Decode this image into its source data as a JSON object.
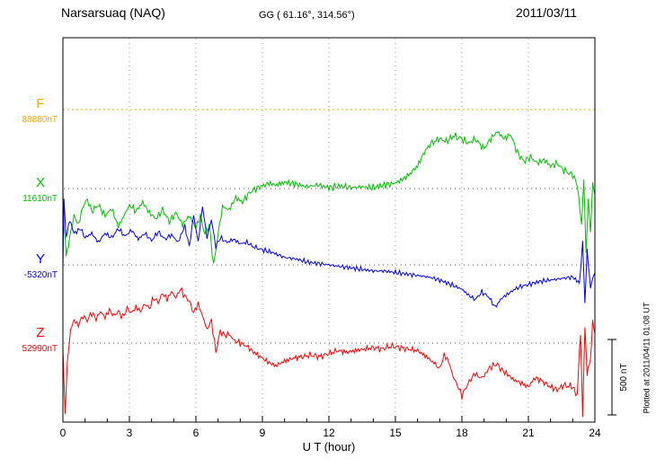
{
  "header": {
    "station": "Narsarsuaq (NAQ)",
    "coords": "GG ( 61.16°, 314.56°)",
    "date": "2011/03/11"
  },
  "axis": {
    "xlabel": "U T (hour)",
    "x_ticks": [
      0,
      3,
      6,
      9,
      12,
      15,
      18,
      21,
      24
    ]
  },
  "scale_bar": {
    "label": "500 nT",
    "nT": 500
  },
  "footer_note": "Plotted at 2011/04/11 01:08 UT",
  "chart_data": {
    "type": "line",
    "title": "Narsarsuaq (NAQ) magnetogram",
    "subtitle": "GG ( 61.16°, 314.56°)",
    "date": "2011/03/11",
    "xlabel": "U T (hour)",
    "ylabel": "",
    "units": "nT",
    "xlim": [
      0,
      24
    ],
    "x_ticks": [
      0,
      3,
      6,
      9,
      12,
      15,
      18,
      21,
      24
    ],
    "scale_nT": 500,
    "grid": "dotted vertical lines every 3 h; dotted horizontal line at each component baseline",
    "legend_position": "left margin (component letter above its baseline value)",
    "layout_hint": "four stacked traces, each plotted as offset in nT from its printed baseline value; right-hand bracket shows 500 nT scale",
    "series": [
      {
        "name": "F",
        "baseline_label": "88880nT",
        "baseline_nT": 88880,
        "color": "#ffa500",
        "style": "dotted",
        "noise_nT": 0,
        "points": [
          [
            0,
            0
          ],
          [
            24,
            0
          ]
        ]
      },
      {
        "name": "X",
        "baseline_label": "11610nT",
        "baseline_nT": 11610,
        "color": "#00c000",
        "style": "solid",
        "noise_nT": 26,
        "points": [
          [
            0,
            -12
          ],
          [
            0.05,
            -240
          ],
          [
            0.15,
            -450
          ],
          [
            0.3,
            -330
          ],
          [
            0.5,
            -180
          ],
          [
            0.7,
            -240
          ],
          [
            0.9,
            -120
          ],
          [
            1.1,
            -72
          ],
          [
            1.3,
            -150
          ],
          [
            1.6,
            -108
          ],
          [
            1.9,
            -180
          ],
          [
            2.2,
            -132
          ],
          [
            2.5,
            -252
          ],
          [
            2.8,
            -168
          ],
          [
            3,
            -108
          ],
          [
            3.3,
            -150
          ],
          [
            3.6,
            -90
          ],
          [
            3.9,
            -160
          ],
          [
            4.2,
            -200
          ],
          [
            4.5,
            -140
          ],
          [
            4.8,
            -220
          ],
          [
            5.1,
            -160
          ],
          [
            5.4,
            -240
          ],
          [
            5.7,
            -180
          ],
          [
            6,
            -260
          ],
          [
            6.2,
            -180
          ],
          [
            6.4,
            -300
          ],
          [
            6.6,
            -240
          ],
          [
            6.8,
            -510
          ],
          [
            7,
            -300
          ],
          [
            7.2,
            -120
          ],
          [
            7.5,
            -140
          ],
          [
            7.8,
            -60
          ],
          [
            8.1,
            -90
          ],
          [
            8.4,
            -30
          ],
          [
            8.7,
            0
          ],
          [
            9,
            18
          ],
          [
            9.3,
            36
          ],
          [
            9.6,
            24
          ],
          [
            10,
            42
          ],
          [
            10.5,
            30
          ],
          [
            11,
            12
          ],
          [
            11.5,
            24
          ],
          [
            12,
            6
          ],
          [
            12.5,
            18
          ],
          [
            13,
            6
          ],
          [
            13.5,
            12
          ],
          [
            14,
            6
          ],
          [
            14.5,
            24
          ],
          [
            15,
            36
          ],
          [
            15.3,
            60
          ],
          [
            15.6,
            90
          ],
          [
            16,
            150
          ],
          [
            16.3,
            240
          ],
          [
            16.6,
            300
          ],
          [
            17,
            330
          ],
          [
            17.3,
            312
          ],
          [
            17.6,
            348
          ],
          [
            18,
            330
          ],
          [
            18.3,
            300
          ],
          [
            18.6,
            330
          ],
          [
            19,
            264
          ],
          [
            19.3,
            330
          ],
          [
            19.6,
            378
          ],
          [
            19.9,
            330
          ],
          [
            20.2,
            360
          ],
          [
            20.5,
            240
          ],
          [
            20.8,
            180
          ],
          [
            21.1,
            210
          ],
          [
            21.4,
            168
          ],
          [
            21.7,
            192
          ],
          [
            22,
            150
          ],
          [
            22.3,
            168
          ],
          [
            22.6,
            120
          ],
          [
            23,
            90
          ],
          [
            23.2,
            30
          ],
          [
            23.4,
            -240
          ],
          [
            23.5,
            60
          ],
          [
            23.6,
            -420
          ],
          [
            23.7,
            -60
          ],
          [
            23.8,
            -300
          ],
          [
            23.9,
            30
          ],
          [
            24,
            -60
          ]
        ]
      },
      {
        "name": "Y",
        "baseline_label": "-5320nT",
        "baseline_nT": -5320,
        "color": "#0000ff",
        "style": "solid",
        "noise_nT": 18,
        "points": [
          [
            0,
            -30
          ],
          [
            0.05,
            420
          ],
          [
            0.15,
            180
          ],
          [
            0.3,
            300
          ],
          [
            0.5,
            210
          ],
          [
            0.8,
            240
          ],
          [
            1,
            180
          ],
          [
            1.3,
            210
          ],
          [
            1.6,
            150
          ],
          [
            1.9,
            210
          ],
          [
            2.2,
            180
          ],
          [
            2.5,
            240
          ],
          [
            2.8,
            190
          ],
          [
            3.1,
            230
          ],
          [
            3.4,
            170
          ],
          [
            3.7,
            210
          ],
          [
            4,
            160
          ],
          [
            4.3,
            220
          ],
          [
            4.6,
            170
          ],
          [
            4.9,
            200
          ],
          [
            5.2,
            150
          ],
          [
            5.5,
            260
          ],
          [
            5.7,
            120
          ],
          [
            5.9,
            330
          ],
          [
            6.1,
            150
          ],
          [
            6.3,
            390
          ],
          [
            6.5,
            180
          ],
          [
            6.7,
            300
          ],
          [
            6.9,
            120
          ],
          [
            7.1,
            180
          ],
          [
            7.4,
            150
          ],
          [
            7.7,
            170
          ],
          [
            8,
            140
          ],
          [
            8.3,
            150
          ],
          [
            8.6,
            120
          ],
          [
            9,
            100
          ],
          [
            9.5,
            80
          ],
          [
            10,
            50
          ],
          [
            10.5,
            40
          ],
          [
            11,
            20
          ],
          [
            11.5,
            10
          ],
          [
            12,
            0
          ],
          [
            12.5,
            -10
          ],
          [
            13,
            -20
          ],
          [
            13.5,
            -30
          ],
          [
            14,
            -40
          ],
          [
            14.5,
            -40
          ],
          [
            15,
            -50
          ],
          [
            15.5,
            -60
          ],
          [
            16,
            -70
          ],
          [
            16.5,
            -80
          ],
          [
            17,
            -100
          ],
          [
            17.5,
            -130
          ],
          [
            18,
            -160
          ],
          [
            18.3,
            -200
          ],
          [
            18.6,
            -230
          ],
          [
            18.9,
            -180
          ],
          [
            19.2,
            -210
          ],
          [
            19.5,
            -280
          ],
          [
            19.8,
            -220
          ],
          [
            20.1,
            -190
          ],
          [
            20.4,
            -160
          ],
          [
            20.7,
            -140
          ],
          [
            21,
            -130
          ],
          [
            21.5,
            -110
          ],
          [
            22,
            -100
          ],
          [
            22.5,
            -90
          ],
          [
            23,
            -80
          ],
          [
            23.3,
            -120
          ],
          [
            23.45,
            150
          ],
          [
            23.55,
            -250
          ],
          [
            23.65,
            100
          ],
          [
            23.8,
            -150
          ],
          [
            24,
            -40
          ]
        ]
      },
      {
        "name": "Z",
        "baseline_label": "52990nT",
        "baseline_nT": 52990,
        "color": "#ff0000",
        "style": "solid",
        "noise_nT": 24,
        "points": [
          [
            0,
            -30
          ],
          [
            0.1,
            -480
          ],
          [
            0.2,
            -120
          ],
          [
            0.35,
            90
          ],
          [
            0.5,
            150
          ],
          [
            0.7,
            120
          ],
          [
            0.9,
            180
          ],
          [
            1.1,
            150
          ],
          [
            1.3,
            200
          ],
          [
            1.5,
            160
          ],
          [
            1.7,
            210
          ],
          [
            1.9,
            170
          ],
          [
            2.1,
            220
          ],
          [
            2.3,
            180
          ],
          [
            2.5,
            210
          ],
          [
            2.7,
            170
          ],
          [
            2.9,
            230
          ],
          [
            3.1,
            200
          ],
          [
            3.3,
            240
          ],
          [
            3.5,
            210
          ],
          [
            3.7,
            260
          ],
          [
            3.9,
            230
          ],
          [
            4.1,
            300
          ],
          [
            4.3,
            270
          ],
          [
            4.5,
            330
          ],
          [
            4.7,
            290
          ],
          [
            4.9,
            340
          ],
          [
            5.1,
            300
          ],
          [
            5.3,
            360
          ],
          [
            5.5,
            310
          ],
          [
            5.7,
            280
          ],
          [
            5.9,
            200
          ],
          [
            6.1,
            260
          ],
          [
            6.3,
            180
          ],
          [
            6.5,
            90
          ],
          [
            6.7,
            150
          ],
          [
            6.9,
            -60
          ],
          [
            7.1,
            80
          ],
          [
            7.3,
            50
          ],
          [
            7.5,
            60
          ],
          [
            7.7,
            20
          ],
          [
            8,
            0
          ],
          [
            8.3,
            -20
          ],
          [
            8.6,
            -60
          ],
          [
            9,
            -100
          ],
          [
            9.3,
            -130
          ],
          [
            9.6,
            -150
          ],
          [
            10,
            -120
          ],
          [
            10.4,
            -100
          ],
          [
            10.8,
            -90
          ],
          [
            11.2,
            -80
          ],
          [
            11.6,
            -90
          ],
          [
            12,
            -70
          ],
          [
            12.4,
            -50
          ],
          [
            12.8,
            -60
          ],
          [
            13.2,
            -50
          ],
          [
            13.6,
            -40
          ],
          [
            14,
            -30
          ],
          [
            14.4,
            -40
          ],
          [
            14.8,
            -20
          ],
          [
            15.2,
            -30
          ],
          [
            15.6,
            -40
          ],
          [
            16,
            -50
          ],
          [
            16.4,
            -90
          ],
          [
            16.8,
            -140
          ],
          [
            17,
            -170
          ],
          [
            17.2,
            -80
          ],
          [
            17.4,
            -120
          ],
          [
            17.6,
            -220
          ],
          [
            17.8,
            -280
          ],
          [
            18,
            -350
          ],
          [
            18.2,
            -290
          ],
          [
            18.4,
            -240
          ],
          [
            18.6,
            -200
          ],
          [
            18.8,
            -230
          ],
          [
            19,
            -220
          ],
          [
            19.2,
            -170
          ],
          [
            19.4,
            -150
          ],
          [
            19.6,
            -140
          ],
          [
            19.8,
            -180
          ],
          [
            20,
            -200
          ],
          [
            20.3,
            -240
          ],
          [
            20.6,
            -260
          ],
          [
            21,
            -290
          ],
          [
            21.3,
            -230
          ],
          [
            21.6,
            -250
          ],
          [
            22,
            -290
          ],
          [
            22.3,
            -310
          ],
          [
            22.6,
            -280
          ],
          [
            23,
            -290
          ],
          [
            23.2,
            -350
          ],
          [
            23.35,
            60
          ],
          [
            23.45,
            -470
          ],
          [
            23.55,
            120
          ],
          [
            23.65,
            -200
          ],
          [
            23.8,
            -120
          ],
          [
            23.9,
            140
          ],
          [
            24,
            60
          ]
        ]
      }
    ]
  }
}
